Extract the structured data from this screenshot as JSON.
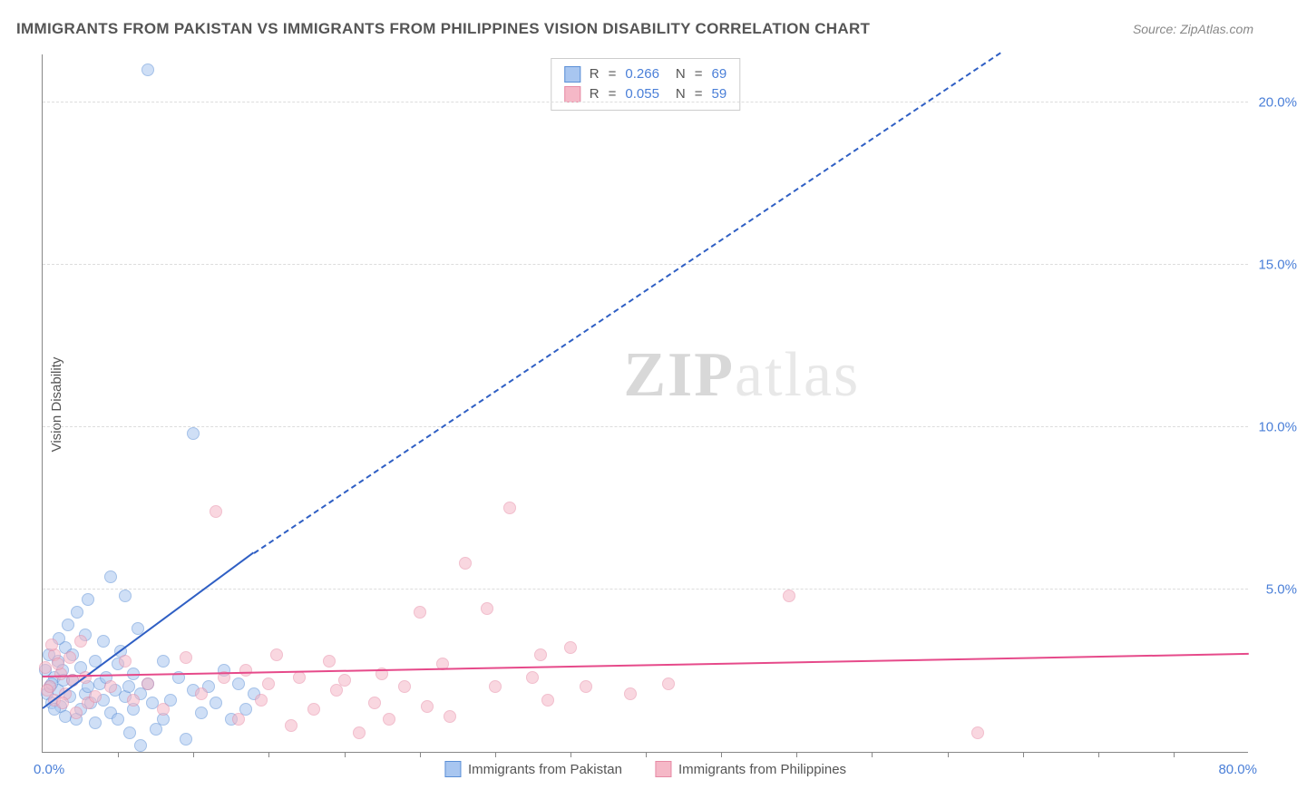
{
  "title": "IMMIGRANTS FROM PAKISTAN VS IMMIGRANTS FROM PHILIPPINES VISION DISABILITY CORRELATION CHART",
  "source": "Source: ZipAtlas.com",
  "y_axis_label": "Vision Disability",
  "watermark_bold": "ZIP",
  "watermark_rest": "atlas",
  "chart": {
    "type": "scatter",
    "background_color": "#ffffff",
    "grid_color": "#dddddd",
    "axis_color": "#888888",
    "xlim": [
      0,
      80
    ],
    "ylim": [
      0,
      21.5
    ],
    "x_origin_label": "0.0%",
    "x_max_label": "80.0%",
    "x_tick_positions": [
      5,
      10,
      15,
      20,
      25,
      30,
      35,
      40,
      45,
      50,
      55,
      60,
      65,
      70,
      75
    ],
    "y_ticks": [
      {
        "value": 5,
        "label": "5.0%"
      },
      {
        "value": 10,
        "label": "10.0%"
      },
      {
        "value": 15,
        "label": "15.0%"
      },
      {
        "value": 20,
        "label": "20.0%"
      }
    ],
    "series": [
      {
        "name": "Immigrants from Pakistan",
        "fill_color": "#a8c6f0",
        "fill_opacity": 0.55,
        "stroke_color": "#5b8fd6",
        "marker_radius": 7,
        "R": "0.266",
        "N": "69",
        "trend": {
          "x1": 0,
          "y1": 1.3,
          "x2": 14,
          "y2": 6.1,
          "color": "#2f5fc4",
          "width": 2
        },
        "trend_dash": {
          "x1": 14,
          "y1": 6.1,
          "x2": 63.5,
          "y2": 21.5,
          "color": "#2f5fc4"
        },
        "points": [
          [
            0.3,
            1.8
          ],
          [
            0.5,
            2.0
          ],
          [
            0.6,
            1.5
          ],
          [
            0.8,
            2.3
          ],
          [
            1.0,
            1.9
          ],
          [
            1.0,
            2.8
          ],
          [
            1.2,
            1.4
          ],
          [
            1.3,
            2.5
          ],
          [
            1.5,
            3.2
          ],
          [
            1.5,
            1.1
          ],
          [
            1.8,
            1.7
          ],
          [
            2.0,
            2.2
          ],
          [
            2.0,
            3.0
          ],
          [
            2.2,
            1.0
          ],
          [
            2.3,
            4.3
          ],
          [
            2.5,
            2.6
          ],
          [
            2.5,
            1.3
          ],
          [
            2.8,
            3.6
          ],
          [
            2.8,
            1.8
          ],
          [
            3.0,
            2.0
          ],
          [
            3.0,
            4.7
          ],
          [
            3.2,
            1.5
          ],
          [
            3.5,
            2.8
          ],
          [
            3.5,
            0.9
          ],
          [
            3.8,
            2.1
          ],
          [
            4.0,
            1.6
          ],
          [
            4.0,
            3.4
          ],
          [
            4.2,
            2.3
          ],
          [
            4.5,
            1.2
          ],
          [
            4.5,
            5.4
          ],
          [
            4.8,
            1.9
          ],
          [
            5.0,
            2.7
          ],
          [
            5.0,
            1.0
          ],
          [
            5.2,
            3.1
          ],
          [
            5.5,
            4.8
          ],
          [
            5.5,
            1.7
          ],
          [
            5.7,
            2.0
          ],
          [
            5.8,
            0.6
          ],
          [
            6.0,
            2.4
          ],
          [
            6.0,
            1.3
          ],
          [
            6.3,
            3.8
          ],
          [
            6.5,
            1.8
          ],
          [
            6.5,
            0.2
          ],
          [
            7.0,
            21.0
          ],
          [
            7.0,
            2.1
          ],
          [
            7.3,
            1.5
          ],
          [
            7.5,
            0.7
          ],
          [
            8.0,
            2.8
          ],
          [
            8.0,
            1.0
          ],
          [
            8.5,
            1.6
          ],
          [
            9.0,
            2.3
          ],
          [
            9.5,
            0.4
          ],
          [
            10.0,
            9.8
          ],
          [
            10.0,
            1.9
          ],
          [
            10.5,
            1.2
          ],
          [
            11.0,
            2.0
          ],
          [
            11.5,
            1.5
          ],
          [
            12.0,
            2.5
          ],
          [
            12.5,
            1.0
          ],
          [
            13.0,
            2.1
          ],
          [
            13.5,
            1.3
          ],
          [
            14.0,
            1.8
          ],
          [
            0.2,
            2.5
          ],
          [
            0.4,
            3.0
          ],
          [
            0.6,
            2.1
          ],
          [
            0.8,
            1.3
          ],
          [
            1.1,
            3.5
          ],
          [
            1.4,
            2.2
          ],
          [
            1.7,
            3.9
          ]
        ]
      },
      {
        "name": "Immigrants from Philippines",
        "fill_color": "#f5b8c7",
        "fill_opacity": 0.55,
        "stroke_color": "#e68aa5",
        "marker_radius": 7,
        "R": "0.055",
        "N": "59",
        "trend": {
          "x1": 0,
          "y1": 2.3,
          "x2": 80,
          "y2": 3.0,
          "color": "#e64a8a",
          "width": 2
        },
        "points": [
          [
            0.2,
            2.6
          ],
          [
            0.5,
            2.0
          ],
          [
            0.8,
            3.0
          ],
          [
            0.8,
            1.6
          ],
          [
            1.2,
            2.4
          ],
          [
            1.5,
            1.8
          ],
          [
            2.0,
            2.2
          ],
          [
            2.5,
            3.4
          ],
          [
            3.0,
            1.5
          ],
          [
            4.5,
            2.0
          ],
          [
            5.5,
            2.8
          ],
          [
            6.0,
            1.6
          ],
          [
            7.0,
            2.1
          ],
          [
            8.0,
            1.3
          ],
          [
            9.5,
            2.9
          ],
          [
            10.5,
            1.8
          ],
          [
            11.5,
            7.4
          ],
          [
            12.0,
            2.3
          ],
          [
            13.0,
            1.0
          ],
          [
            13.5,
            2.5
          ],
          [
            14.5,
            1.6
          ],
          [
            15.0,
            2.1
          ],
          [
            15.5,
            3.0
          ],
          [
            16.5,
            0.8
          ],
          [
            17.0,
            2.3
          ],
          [
            18.0,
            1.3
          ],
          [
            19.0,
            2.8
          ],
          [
            19.5,
            1.9
          ],
          [
            20.0,
            2.2
          ],
          [
            21.0,
            0.6
          ],
          [
            22.0,
            1.5
          ],
          [
            22.5,
            2.4
          ],
          [
            23.0,
            1.0
          ],
          [
            24.0,
            2.0
          ],
          [
            25.0,
            4.3
          ],
          [
            25.5,
            1.4
          ],
          [
            26.5,
            2.7
          ],
          [
            27.0,
            1.1
          ],
          [
            28.0,
            5.8
          ],
          [
            29.5,
            4.4
          ],
          [
            30.0,
            2.0
          ],
          [
            31.0,
            7.5
          ],
          [
            32.5,
            2.3
          ],
          [
            33.0,
            3.0
          ],
          [
            33.5,
            1.6
          ],
          [
            35.0,
            3.2
          ],
          [
            36.0,
            2.0
          ],
          [
            39.0,
            1.8
          ],
          [
            41.5,
            2.1
          ],
          [
            49.5,
            4.8
          ],
          [
            62.0,
            0.6
          ],
          [
            0.3,
            1.9
          ],
          [
            0.6,
            3.3
          ],
          [
            1.0,
            2.7
          ],
          [
            1.3,
            1.5
          ],
          [
            1.8,
            2.9
          ],
          [
            2.2,
            1.2
          ],
          [
            2.8,
            2.3
          ],
          [
            3.5,
            1.7
          ]
        ]
      }
    ]
  },
  "stats_labels": {
    "R": "R",
    "N": "N",
    "eq": "="
  }
}
